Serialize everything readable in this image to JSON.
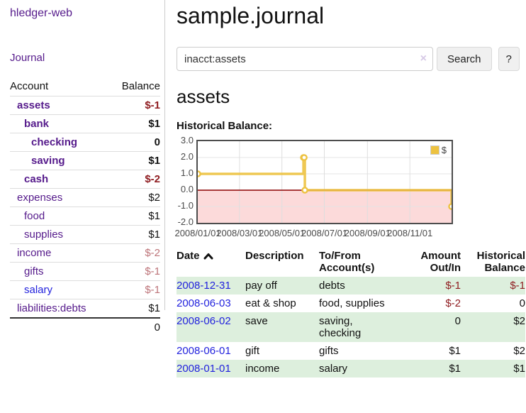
{
  "app": {
    "title": "hledger-web"
  },
  "sidebar": {
    "nav_journal": "Journal",
    "table": {
      "headers": [
        "Account",
        "Balance"
      ],
      "accounts": [
        {
          "name": "assets",
          "depth": 1,
          "bold": true,
          "link_tone": "purple",
          "balance": "$-1",
          "balance_tone": "neg-strong"
        },
        {
          "name": "bank",
          "depth": 2,
          "bold": true,
          "link_tone": "purple",
          "balance": "$1",
          "balance_tone": "normal"
        },
        {
          "name": "checking",
          "depth": 3,
          "bold": true,
          "link_tone": "purple",
          "balance": "0",
          "balance_tone": "normal"
        },
        {
          "name": "saving",
          "depth": 3,
          "bold": true,
          "link_tone": "purple",
          "balance": "$1",
          "balance_tone": "normal"
        },
        {
          "name": "cash",
          "depth": 2,
          "bold": true,
          "link_tone": "purple",
          "balance": "$-2",
          "balance_tone": "neg-strong"
        },
        {
          "name": "expenses",
          "depth": 1,
          "bold": false,
          "link_tone": "purple",
          "balance": "$2",
          "balance_tone": "normal"
        },
        {
          "name": "food",
          "depth": 2,
          "bold": false,
          "link_tone": "purple",
          "balance": "$1",
          "balance_tone": "normal"
        },
        {
          "name": "supplies",
          "depth": 2,
          "bold": false,
          "link_tone": "purple",
          "balance": "$1",
          "balance_tone": "normal"
        },
        {
          "name": "income",
          "depth": 1,
          "bold": false,
          "link_tone": "purple",
          "balance": "$-2",
          "balance_tone": "neg-weak"
        },
        {
          "name": "gifts",
          "depth": 2,
          "bold": false,
          "link_tone": "purple",
          "balance": "$-1",
          "balance_tone": "neg-weak"
        },
        {
          "name": "salary",
          "depth": 2,
          "bold": false,
          "link_tone": "blue",
          "balance": "$-1",
          "balance_tone": "neg-weak"
        },
        {
          "name": "liabilities:debts",
          "depth": 1,
          "bold": false,
          "link_tone": "purple",
          "balance": "$1",
          "balance_tone": "normal"
        }
      ],
      "total": "0"
    }
  },
  "header": {
    "title": "sample.journal"
  },
  "search": {
    "value": "inacct:assets",
    "clear_icon": "×",
    "button": "Search",
    "help_button": "?"
  },
  "account_page": {
    "title": "assets",
    "chart_label": "Historical Balance:"
  },
  "chart_data": {
    "type": "line",
    "line_style": "step-after",
    "series": [
      {
        "name": "$",
        "color": "#edc240",
        "points": [
          [
            "2008-01-01",
            1
          ],
          [
            "2008-06-01",
            2
          ],
          [
            "2008-06-02",
            2
          ],
          [
            "2008-06-03",
            0
          ],
          [
            "2008-12-31",
            -1
          ]
        ]
      }
    ],
    "x_range": [
      "2008-01-01",
      "2008-12-31"
    ],
    "ylim": [
      -2,
      3
    ],
    "y_ticks": [
      "3.0",
      "2.0",
      "1.0",
      "0.0",
      "-1.0",
      "-2.0"
    ],
    "x_ticks": [
      "2008/01/01",
      "2008/03/01",
      "2008/05/01",
      "2008/07/01",
      "2008/09/01",
      "2008/11/01"
    ],
    "legend": {
      "label": "$",
      "position": "top-right"
    },
    "grid": true,
    "negative_region_fill": "#fcdada",
    "zero_line_color": "#8b0000",
    "border_color": "#4d4d4d"
  },
  "transactions": {
    "headers": [
      {
        "line1": "Date",
        "line2": "",
        "align": "left",
        "sorted": true
      },
      {
        "line1": "Description",
        "line2": "",
        "align": "left",
        "sorted": false
      },
      {
        "line1": "To/From",
        "line2": "Account(s)",
        "align": "left",
        "sorted": false
      },
      {
        "line1": "Amount",
        "line2": "Out/In",
        "align": "right",
        "sorted": false
      },
      {
        "line1": "Historical",
        "line2": "Balance",
        "align": "right",
        "sorted": false
      }
    ],
    "rows": [
      {
        "date": "2008-12-31",
        "description": "pay off",
        "accounts": "debts",
        "amount": "$-1",
        "balance": "$-1"
      },
      {
        "date": "2008-06-03",
        "description": "eat & shop",
        "accounts": "food, supplies",
        "amount": "$-2",
        "balance": "0"
      },
      {
        "date": "2008-06-02",
        "description": "save",
        "accounts": "saving, checking",
        "amount": "0",
        "balance": "$2"
      },
      {
        "date": "2008-06-01",
        "description": "gift",
        "accounts": "gifts",
        "amount": "$1",
        "balance": "$2"
      },
      {
        "date": "2008-01-01",
        "description": "income",
        "accounts": "salary",
        "amount": "$1",
        "balance": "$1"
      }
    ]
  },
  "colors": {
    "link_purple": "#551a8b",
    "link_blue": "#2222dd",
    "negative_strong": "#8f1d21",
    "negative_weak": "#bd7479",
    "row_stripe_green": "#ddefdd",
    "chart_line_gold": "#edc240",
    "chart_negative_pink": "#fcdada",
    "chart_zero_line": "#8b0000",
    "divider_gray": "#cccccc"
  }
}
